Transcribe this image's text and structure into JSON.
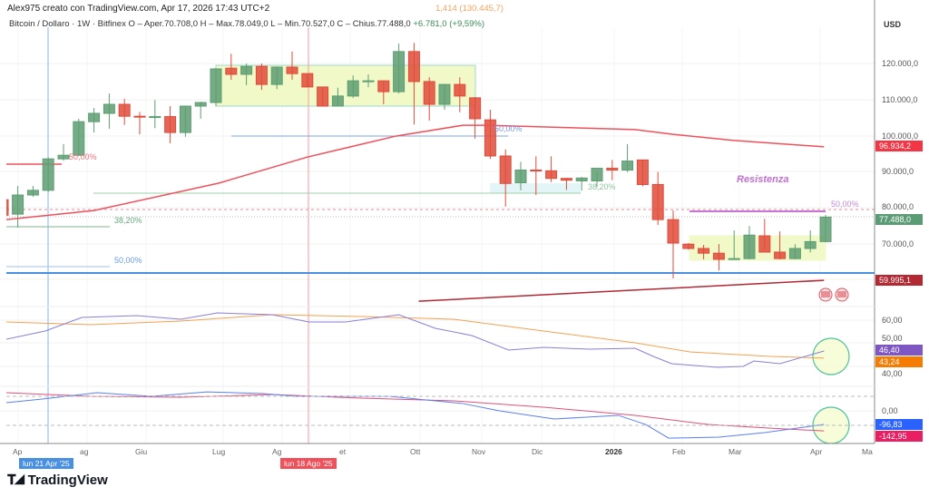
{
  "header": {
    "credit": "Alex975 creato con TradingView.com, Apr 17, 2026 17:43 UTC+2",
    "symbol_line": "Bitcoin / Dollaro · 1W · Bitfinex  O – Aper.70.708,0  H – Max.78.049,0  L – Min.70.527,0  C – Chius.77.488,0",
    "change": "+6.781,0 (+9,59%)",
    "indicator_value": "1,414 (130.445,7)"
  },
  "price_axis": {
    "currency": "USD",
    "ticks": [
      "120.000,0",
      "110.000,0",
      "100.000,0",
      "90.000,0",
      "80.000,0",
      "70.000,0"
    ],
    "tags": [
      {
        "label": "96.934,2",
        "color": "#f23645"
      },
      {
        "label": "77.488,0",
        "color": "#5b9b76"
      },
      {
        "label": "59.995,1",
        "color": "#b22833"
      }
    ]
  },
  "rsi_axis": {
    "ticks": [
      "60,00",
      "50,00",
      "40,00"
    ],
    "tags": [
      {
        "label": "46,40",
        "color": "#7e57c2"
      },
      {
        "label": "43,24",
        "color": "#f57c00"
      }
    ]
  },
  "osc_axis": {
    "ticks": [
      "0,00"
    ],
    "tags": [
      {
        "label": "-96,83",
        "color": "#2962ff"
      },
      {
        "label": "-142,95",
        "color": "#e91e63"
      }
    ]
  },
  "time_axis": {
    "labels": [
      "Ap",
      "ag",
      "Giu",
      "Lug",
      "Ag",
      "et",
      "Ott",
      "Nov",
      "Dic",
      "2026",
      "Feb",
      "Mar",
      "Apr",
      "Ma"
    ],
    "crosshair_tags": [
      {
        "label": "lun 21 Apr '25",
        "color": "#4a90e2"
      },
      {
        "label": "lun 18 Ago '25",
        "color": "#f0505a"
      }
    ]
  },
  "annotations": {
    "fib_50_red": "50,00%",
    "fib_382_left": "38,20%",
    "fib_50_blue_left": "50,00%",
    "fib_50_blue_mid": "50,00%",
    "fib_382_mid": "38,20%",
    "fib_50_purple": "50,00%",
    "resistance": "Resistenza"
  },
  "footer": {
    "logo": "TradingView"
  },
  "colors": {
    "up": "#5d9e72",
    "down": "#e04b3a",
    "ma": "#f0505a",
    "trend": "#b22833",
    "support": "#4a90e2",
    "rsi": "#8a7fd6",
    "rsi_ma": "#f5a050",
    "osc": "#5b7ff0",
    "osc_signal": "#e0507a",
    "range_box": "#f1f9c8"
  },
  "chart_data": {
    "type": "candlestick",
    "interval": "1W",
    "ylim": [
      52000,
      126000
    ],
    "candles_ohlc": [
      [
        82300,
        83000,
        77000,
        78000
      ],
      [
        78300,
        86100,
        74600,
        83600
      ],
      [
        83600,
        86100,
        83100,
        84900
      ],
      [
        84900,
        94000,
        84400,
        93600
      ],
      [
        93600,
        97700,
        93100,
        94600
      ],
      [
        94600,
        104700,
        94400,
        103900
      ],
      [
        103900,
        107700,
        100900,
        106200
      ],
      [
        106200,
        111700,
        101900,
        108700
      ],
      [
        108700,
        110200,
        103000,
        105400
      ],
      [
        105400,
        106600,
        100400,
        105200
      ],
      [
        105200,
        109900,
        102100,
        105300
      ],
      [
        105300,
        108200,
        97900,
        100900
      ],
      [
        100900,
        108200,
        99700,
        108200
      ],
      [
        108200,
        109400,
        104700,
        109200
      ],
      [
        109200,
        118700,
        108200,
        118500
      ],
      [
        118700,
        122700,
        115500,
        117000
      ],
      [
        117000,
        120000,
        114000,
        119200
      ],
      [
        119200,
        120000,
        112700,
        114200
      ],
      [
        114200,
        119200,
        112900,
        119000
      ],
      [
        119000,
        123300,
        115500,
        117200
      ],
      [
        117200,
        117200,
        113500,
        113500
      ],
      [
        113500,
        113500,
        108200,
        108200
      ],
      [
        108200,
        113300,
        108400,
        111000
      ],
      [
        111000,
        116700,
        110500,
        115200
      ],
      [
        115200,
        117000,
        113400,
        115200
      ],
      [
        115200,
        115200,
        108700,
        112200
      ],
      [
        112200,
        125500,
        111700,
        123300
      ],
      [
        123300,
        125700,
        103100,
        115000
      ],
      [
        115000,
        116200,
        104200,
        108700
      ],
      [
        108700,
        114200,
        107200,
        114200
      ],
      [
        114200,
        116200,
        106500,
        111000
      ],
      [
        110500,
        110700,
        99200,
        104700
      ],
      [
        104400,
        107200,
        93600,
        94400
      ],
      [
        94400,
        96200,
        80400,
        86800
      ],
      [
        87000,
        92800,
        84900,
        90500
      ],
      [
        90500,
        94300,
        83600,
        90300
      ],
      [
        90300,
        94300,
        87200,
        88200
      ],
      [
        88200,
        88300,
        85000,
        87700
      ],
      [
        87500,
        88600,
        84800,
        88300
      ],
      [
        87500,
        90000,
        85800,
        91000
      ],
      [
        91000,
        93300,
        87700,
        90500
      ],
      [
        90500,
        97700,
        89900,
        93000
      ],
      [
        93300,
        93300,
        86000,
        86500
      ],
      [
        86500,
        90000,
        75300,
        76800
      ],
      [
        76800,
        79300,
        60500,
        70300
      ],
      [
        70000,
        70300,
        68500,
        68800
      ],
      [
        68800,
        69800,
        65800,
        67500
      ],
      [
        67500,
        70000,
        62700,
        65800
      ],
      [
        66000,
        73800,
        65800,
        66000
      ],
      [
        66000,
        75000,
        65800,
        72500
      ],
      [
        72300,
        77000,
        68500,
        67800
      ],
      [
        67800,
        73500,
        65800,
        66000
      ],
      [
        66000,
        70000,
        65800,
        68800
      ],
      [
        68800,
        73800,
        67700,
        70700
      ],
      [
        70708,
        78049,
        70527,
        77488
      ]
    ],
    "moving_average": [
      [
        0.25,
        76800
      ],
      [
        6,
        79300
      ],
      [
        14.2,
        86900
      ],
      [
        20,
        94100
      ],
      [
        25.8,
        99900
      ],
      [
        30.2,
        102900
      ],
      [
        31.8,
        102900
      ],
      [
        41.5,
        101700
      ],
      [
        44,
        100400
      ],
      [
        48,
        98700
      ],
      [
        53.9,
        96934
      ]
    ],
    "trendline": [
      [
        27.3,
        54200
      ],
      [
        53.9,
        59995
      ]
    ],
    "rsi": [
      [
        0.25,
        51.6
      ],
      [
        2.8,
        55.2
      ],
      [
        5.2,
        61.2
      ],
      [
        8.8,
        62
      ],
      [
        11.7,
        60.4
      ],
      [
        14.1,
        63.2
      ],
      [
        17.7,
        62.4
      ],
      [
        20.1,
        59.2
      ],
      [
        22.5,
        59.2
      ],
      [
        26,
        62.4
      ],
      [
        28.4,
        56.4
      ],
      [
        30.8,
        53.2
      ],
      [
        33.2,
        46.8
      ],
      [
        35.5,
        48
      ],
      [
        38.5,
        47.2
      ],
      [
        41.5,
        47.6
      ],
      [
        42.7,
        44
      ],
      [
        43.9,
        40.8
      ],
      [
        46.9,
        39.2
      ],
      [
        48.6,
        39.6
      ],
      [
        49.3,
        42
      ],
      [
        51,
        40.8
      ],
      [
        53.9,
        46.4
      ]
    ],
    "rsi_ma": [
      [
        0.25,
        59.2
      ],
      [
        5.8,
        58
      ],
      [
        11.7,
        59.6
      ],
      [
        17.7,
        62.4
      ],
      [
        23.6,
        61.6
      ],
      [
        29.6,
        60.4
      ],
      [
        35.5,
        55.2
      ],
      [
        41.5,
        50
      ],
      [
        45.1,
        46
      ],
      [
        50.4,
        44
      ],
      [
        53.9,
        43.24
      ]
    ],
    "oscillator": [
      [
        0.25,
        58
      ],
      [
        2.6,
        84
      ],
      [
        6.2,
        129
      ],
      [
        9.8,
        103
      ],
      [
        13.4,
        135
      ],
      [
        17,
        123
      ],
      [
        19.4,
        103
      ],
      [
        25.4,
        103
      ],
      [
        30.2,
        52
      ],
      [
        32.6,
        0
      ],
      [
        36.2,
        -58
      ],
      [
        40.4,
        -32
      ],
      [
        42.2,
        -97
      ],
      [
        43.7,
        -194
      ],
      [
        47,
        -187
      ],
      [
        50,
        -155
      ],
      [
        53.9,
        -96.83
      ]
    ],
    "oscillator_signal": [
      [
        0.25,
        129
      ],
      [
        5.8,
        103
      ],
      [
        11.7,
        97
      ],
      [
        17.7,
        116
      ],
      [
        23.6,
        90
      ],
      [
        29.6,
        71
      ],
      [
        35.5,
        26
      ],
      [
        41.5,
        -32
      ],
      [
        46.3,
        -97
      ],
      [
        50.4,
        -123
      ],
      [
        53.9,
        -142.95
      ]
    ]
  }
}
